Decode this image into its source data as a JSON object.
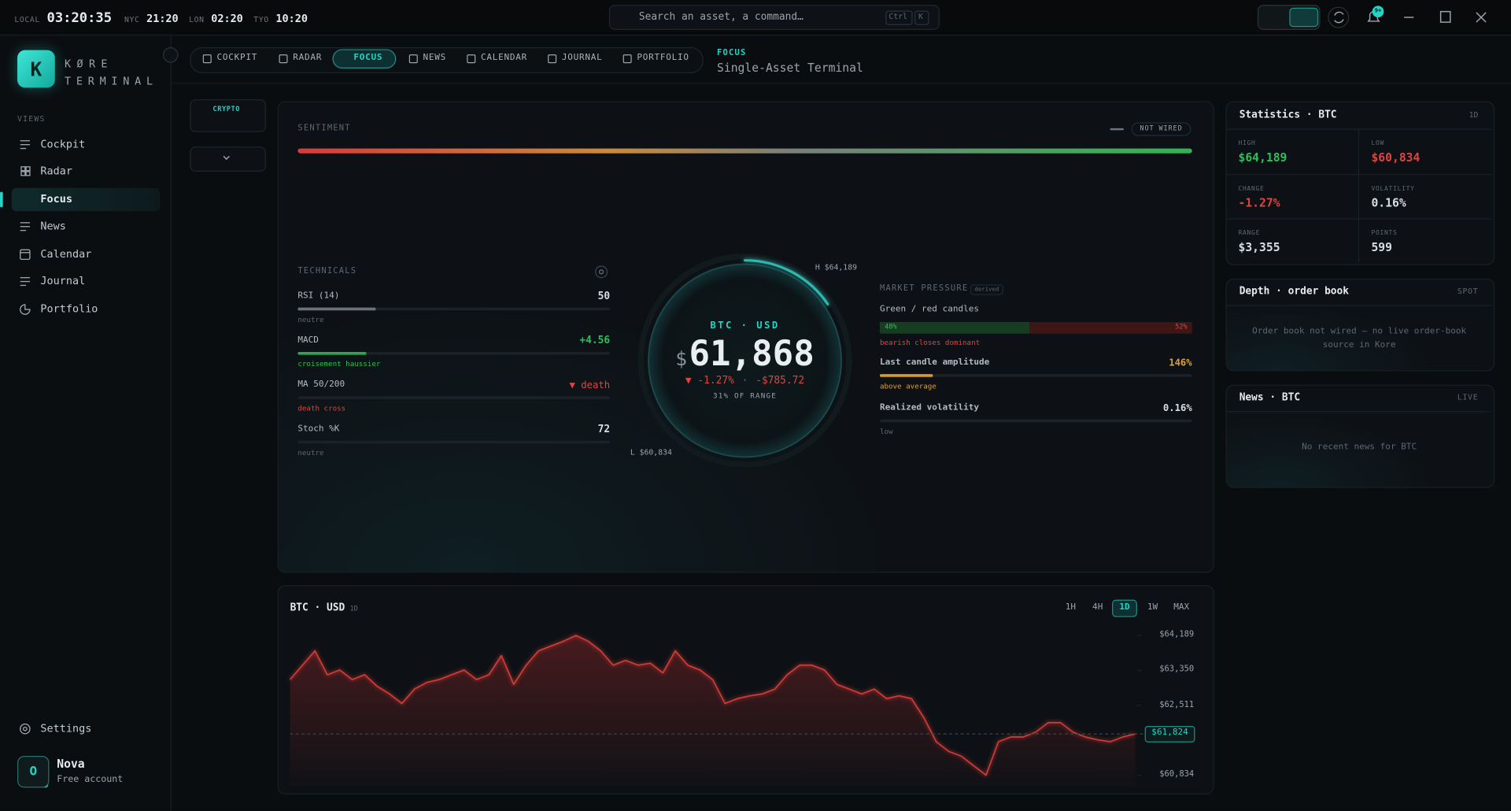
{
  "topbar": {
    "clocks": [
      {
        "label": "LOCAL",
        "time": "03:20:35"
      },
      {
        "label": "NYC",
        "time": "21:20"
      },
      {
        "label": "LON",
        "time": "02:20"
      },
      {
        "label": "TYO",
        "time": "10:20"
      }
    ],
    "search": "Search an asset, a command…",
    "shortcut": [
      "Ctrl",
      "K"
    ],
    "badge": "9+"
  },
  "sidebar": {
    "logo": "K",
    "brand": "KØRE",
    "brand_sub": "TERMINAL",
    "section": "VIEWS",
    "items": [
      "Cockpit",
      "Radar",
      "Focus",
      "News",
      "Calendar",
      "Journal",
      "Portfolio"
    ],
    "active": 2,
    "settings": "Settings",
    "user": {
      "avatar": "O",
      "name": "Nova",
      "plan": "Free account"
    }
  },
  "tabs": {
    "items": [
      "COCKPIT",
      "RADAR",
      "FOCUS",
      "NEWS",
      "CALENDAR",
      "JOURNAL",
      "PORTFOLIO"
    ],
    "active": 2
  },
  "header": {
    "eyebrow": "FOCUS",
    "title": "Single-Asset Terminal"
  },
  "asset_class": "CRYPTO",
  "sentiment": {
    "title": "SENTIMENT",
    "status": "NOT WIRED"
  },
  "technicals": {
    "title": "TECHNICALS",
    "rows": [
      {
        "name": "RSI (14)",
        "value": "50",
        "note": "neutre",
        "tone": "neutral",
        "fill": 25
      },
      {
        "name": "MACD",
        "value": "+4.56",
        "note": "croisement haussier",
        "tone": "up",
        "fill": 22
      },
      {
        "name": "MA 50/200",
        "value": "▼ death",
        "note": "death cross",
        "tone": "down"
      },
      {
        "name": "Stoch %K",
        "value": "72",
        "note": "neutre",
        "tone": "neutral"
      }
    ]
  },
  "gauge": {
    "pair": "BTC · USD",
    "currency": "$",
    "price": "61,868",
    "change": "▼ -1.27%",
    "separator": "·",
    "change_abs": "-$785.72",
    "range_label": "31% OF RANGE",
    "range_pct": 31,
    "high": "H $64,189",
    "low": "L $60,834"
  },
  "pressure": {
    "title": "MARKET PRESSURE",
    "tag": "derived",
    "candles": {
      "name": "Green / red candles",
      "values": [
        48,
        52
      ],
      "value_labels": [
        "48%",
        "52%"
      ],
      "note": "bearish closes dominant"
    },
    "rows": [
      {
        "name": "Last candle amplitude",
        "value": "146%",
        "note": "above average",
        "tone": "warn",
        "fill": 17
      },
      {
        "name": "Realized volatility",
        "value": "0.16%",
        "note": "low",
        "tone": "neutral"
      }
    ]
  },
  "statistics": {
    "title": "Statistics · BTC",
    "period": "1D",
    "cells": [
      {
        "label": "HIGH",
        "value": "$64,189",
        "tone": "up"
      },
      {
        "label": "LOW",
        "value": "$60,834",
        "tone": "down"
      },
      {
        "label": "CHANGE",
        "value": "-1.27%",
        "tone": "down"
      },
      {
        "label": "VOLATILITY",
        "value": "0.16%",
        "tone": "neutral"
      },
      {
        "label": "RANGE",
        "value": "$3,355",
        "tone": "neutral"
      },
      {
        "label": "POINTS",
        "value": "599",
        "tone": "neutral"
      }
    ]
  },
  "depth": {
    "title": "Depth · order book",
    "tag": "SPOT",
    "message": "Order book not wired — no live order-book source in Kore"
  },
  "news": {
    "title": "News · BTC",
    "tag": "LIVE",
    "message": "No recent news for BTC"
  },
  "price_chart": {
    "title": "BTC · USD",
    "period": "1D",
    "timeframes": [
      "1H",
      "4H",
      "1D",
      "1W",
      "MAX"
    ],
    "active_timeframe": 2,
    "ylim": [
      60580,
      64400
    ],
    "yticks": [
      {
        "value": 64189,
        "label": "$64,189"
      },
      {
        "value": 63350,
        "label": "$63,350"
      },
      {
        "value": 62511,
        "label": "$62,511"
      },
      {
        "value": 60834,
        "label": "$60,834"
      }
    ],
    "last": {
      "value": 61824,
      "label": "$61,824"
    },
    "values": [
      63131,
      63476,
      63821,
      63246,
      63361,
      63131,
      63246,
      62971,
      62787,
      62557,
      62902,
      63063,
      63131,
      63246,
      63361,
      63131,
      63246,
      63706,
      63016,
      63476,
      63821,
      63936,
      64051,
      64189,
      64051,
      63821,
      63476,
      63591,
      63476,
      63522,
      63292,
      63821,
      63476,
      63361,
      63131,
      62557,
      62672,
      62741,
      62787,
      62902,
      63246,
      63476,
      63476,
      63361,
      63016,
      62902,
      62787,
      62902,
      62672,
      62741,
      62672,
      62212,
      61637,
      61407,
      61292,
      61062,
      60834,
      61637,
      61752,
      61752,
      61867,
      62097,
      62097,
      61867,
      61752,
      61683,
      61637,
      61752,
      61824
    ]
  }
}
